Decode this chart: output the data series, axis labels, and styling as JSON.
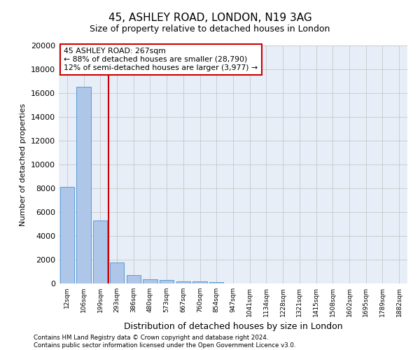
{
  "title": "45, ASHLEY ROAD, LONDON, N19 3AG",
  "subtitle": "Size of property relative to detached houses in London",
  "xlabel": "Distribution of detached houses by size in London",
  "ylabel": "Number of detached properties",
  "categories": [
    "12sqm",
    "106sqm",
    "199sqm",
    "293sqm",
    "386sqm",
    "480sqm",
    "573sqm",
    "667sqm",
    "760sqm",
    "854sqm",
    "947sqm",
    "1041sqm",
    "1134sqm",
    "1228sqm",
    "1321sqm",
    "1415sqm",
    "1508sqm",
    "1602sqm",
    "1695sqm",
    "1789sqm",
    "1882sqm"
  ],
  "values": [
    8100,
    16500,
    5300,
    1750,
    700,
    350,
    275,
    200,
    150,
    100,
    0,
    0,
    0,
    0,
    0,
    0,
    0,
    0,
    0,
    0,
    0
  ],
  "bar_color": "#aec6e8",
  "bar_edge_color": "#5b9bd5",
  "vline_x": 2.5,
  "vline_color": "#cc0000",
  "annotation_text": "45 ASHLEY ROAD: 267sqm\n← 88% of detached houses are smaller (28,790)\n12% of semi-detached houses are larger (3,977) →",
  "annotation_box_color": "#cc0000",
  "ylim": [
    0,
    20000
  ],
  "yticks": [
    0,
    2000,
    4000,
    6000,
    8000,
    10000,
    12000,
    14000,
    16000,
    18000,
    20000
  ],
  "grid_color": "#cccccc",
  "background_color": "#e8eef8",
  "footer_line1": "Contains HM Land Registry data © Crown copyright and database right 2024.",
  "footer_line2": "Contains public sector information licensed under the Open Government Licence v3.0."
}
